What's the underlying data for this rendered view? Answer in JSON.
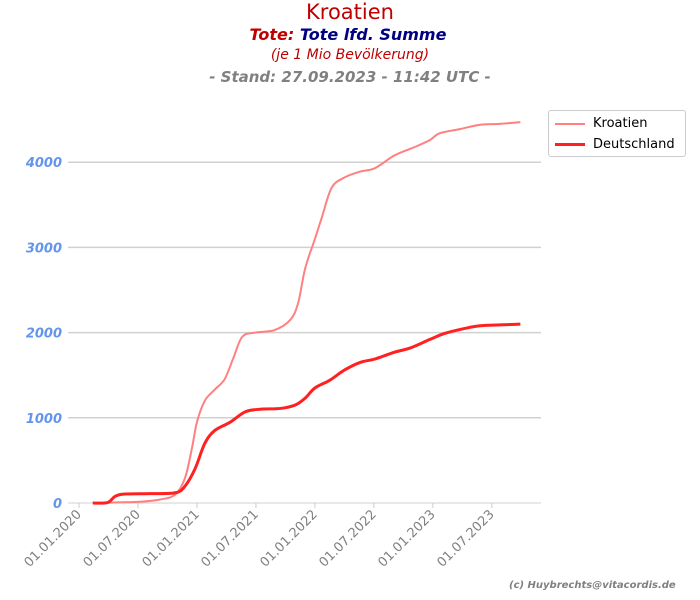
{
  "title": "Kroatien",
  "subtitle_label": "Tote:",
  "subtitle_value": "Tote lfd. Summe",
  "subtitle2": "(je 1 Mio Bevölkerung)",
  "subtitle3": "- Stand: 27.09.2023 - 11:42 UTC -",
  "credit": "(c) Huybrechts@vitacordis.de",
  "chart_data": {
    "type": "line",
    "title": "Kroatien",
    "x_unit": "months since 01.01.2020",
    "xlim": [
      -1.1,
      46.9
    ],
    "ylim": [
      0,
      4800
    ],
    "x_ticks": [
      {
        "x": 0,
        "label": "01.01.2020"
      },
      {
        "x": 6,
        "label": "01.07.2020"
      },
      {
        "x": 12,
        "label": "01.01.2021"
      },
      {
        "x": 18,
        "label": "01.07.2021"
      },
      {
        "x": 24,
        "label": "01.01.2022"
      },
      {
        "x": 30,
        "label": "01.07.2022"
      },
      {
        "x": 36,
        "label": "01.01.2023"
      },
      {
        "x": 42,
        "label": "01.07.2023"
      }
    ],
    "y_ticks": [
      {
        "y": 0,
        "label": "0"
      },
      {
        "y": 1000,
        "label": "1000"
      },
      {
        "y": 2000,
        "label": "2000"
      },
      {
        "y": 3000,
        "label": "3000"
      },
      {
        "y": 4000,
        "label": "4000"
      }
    ],
    "grid": true,
    "legend_position": "top-right",
    "series": [
      {
        "name": "Kroatien",
        "color": "#ff8080",
        "width": 2,
        "x": [
          1.4,
          3.2,
          6.2,
          8.2,
          9.8,
          10.8,
          11.5,
          12,
          12.8,
          13.8,
          14.8,
          15.7,
          16.6,
          17.9,
          19.9,
          21.5,
          22.3,
          23,
          24,
          24.7,
          25.7,
          27,
          28.6,
          30.1,
          32.1,
          34.2,
          35.7,
          36.7,
          38.8,
          40.8,
          42.8,
          44.9
        ],
        "y": [
          0,
          5,
          15,
          40,
          100,
          300,
          650,
          950,
          1200,
          1330,
          1450,
          1700,
          1950,
          2000,
          2030,
          2150,
          2350,
          2750,
          3100,
          3350,
          3700,
          3820,
          3890,
          3930,
          4080,
          4180,
          4260,
          4340,
          4390,
          4440,
          4450,
          4470
        ]
      },
      {
        "name": "Deutschland",
        "color": "#ff2020",
        "width": 3,
        "x": [
          1.4,
          2.9,
          3.7,
          4.7,
          7.2,
          9.8,
          10.8,
          11.8,
          12.8,
          13.8,
          15.4,
          16.9,
          18.4,
          20.5,
          22,
          23,
          24,
          25.5,
          27,
          28.6,
          30.1,
          32.1,
          33.7,
          35.7,
          37.2,
          39.3,
          40.8,
          42.8,
          44.9
        ],
        "y": [
          0,
          5,
          80,
          105,
          110,
          120,
          200,
          400,
          700,
          850,
          950,
          1070,
          1100,
          1110,
          1150,
          1230,
          1350,
          1440,
          1560,
          1650,
          1690,
          1770,
          1820,
          1920,
          1990,
          2050,
          2080,
          2090,
          2100
        ]
      }
    ]
  }
}
